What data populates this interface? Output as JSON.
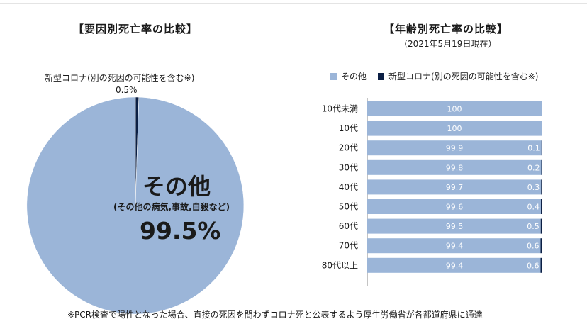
{
  "colors": {
    "other": "#9bb5d8",
    "corona": "#0b1f44",
    "axis": "#8a8a8a"
  },
  "chart_data": [
    {
      "type": "pie",
      "title": "【要因別死亡率の比較】",
      "slices": [
        {
          "name": "新型コロナ(別の死因の可能性を含む※)",
          "value": 0.5,
          "label": "0.5%"
        },
        {
          "name": "その他",
          "note": "(その他の病気,事故,自殺など)",
          "value": 99.5,
          "label": "99.5%"
        }
      ]
    },
    {
      "type": "bar",
      "stacked": true,
      "orientation": "horizontal",
      "title": "【年齢別死亡率の比較】",
      "subtitle": "（2021年5月19日現在）",
      "legend": [
        "その他",
        "新型コロナ(別の死因の可能性を含む※)"
      ],
      "legend_position": "top",
      "categories": [
        "10代未満",
        "10代",
        "20代",
        "30代",
        "40代",
        "50代",
        "60代",
        "70代",
        "80代以上"
      ],
      "xlim": [
        0,
        100
      ],
      "series": [
        {
          "name": "その他",
          "values": [
            100,
            100,
            99.9,
            99.8,
            99.7,
            99.6,
            99.5,
            99.4,
            99.4
          ]
        },
        {
          "name": "新型コロナ(別の死因の可能性を含む※)",
          "values": [
            0,
            0,
            0.1,
            0.2,
            0.3,
            0.4,
            0.5,
            0.6,
            0.6
          ]
        }
      ],
      "data_labels": {
        "other": [
          "100",
          "100",
          "99.9",
          "99.8",
          "99.7",
          "99.6",
          "99.5",
          "99.4",
          "99.4"
        ],
        "corona": [
          "",
          "",
          "0.1",
          "0.2",
          "0.3",
          "0.4",
          "0.5",
          "0.6",
          "0.6"
        ]
      }
    }
  ],
  "footnote": "※PCR検査で陽性となった場合、直接の死因を問わずコロナ死と公表するよう厚生労働省が各都道府県に通達"
}
